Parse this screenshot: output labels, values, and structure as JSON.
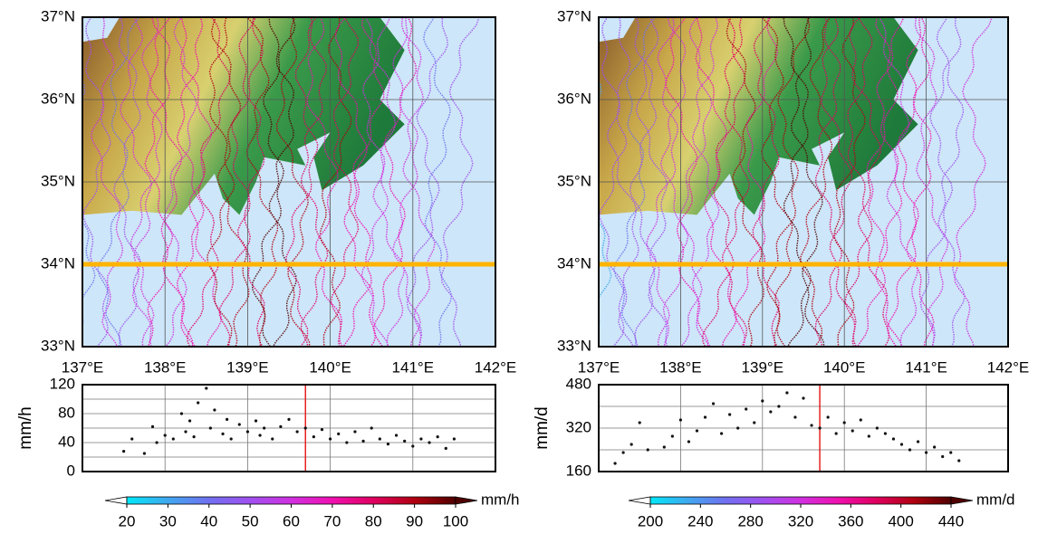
{
  "chart_data": [
    {
      "type": "map",
      "xlim": [
        137,
        142
      ],
      "ylim": [
        33,
        37
      ],
      "xticks": [
        {
          "value": 137,
          "label": "137°E"
        },
        {
          "value": 138,
          "label": "138°E"
        },
        {
          "value": 139,
          "label": "139°E"
        },
        {
          "value": 140,
          "label": "140°E"
        },
        {
          "value": 141,
          "label": "141°E"
        },
        {
          "value": 142,
          "label": "142°E"
        }
      ],
      "yticks": [
        {
          "value": 33,
          "label": "33°N"
        },
        {
          "value": 34,
          "label": "34°N"
        },
        {
          "value": 35,
          "label": "35°N"
        },
        {
          "value": 36,
          "label": "36°N"
        },
        {
          "value": 37,
          "label": "37°N"
        }
      ],
      "highlight_lat": 34,
      "highlight_color": "#ffb400"
    },
    {
      "type": "scatter",
      "ylabel": "mm/h",
      "xlim": [
        137,
        142
      ],
      "ylim": [
        0,
        120
      ],
      "xticks": [
        137,
        138,
        139,
        140,
        141,
        142
      ],
      "yticks": [
        0,
        40,
        80,
        120
      ],
      "ygrid": [
        0,
        20,
        40,
        60,
        80,
        100,
        120
      ],
      "reference_x": 139.7,
      "reference_color": "#e82020",
      "color": "#111111",
      "x": [
        137.5,
        137.6,
        137.75,
        137.85,
        137.9,
        138.0,
        138.1,
        138.2,
        138.25,
        138.3,
        138.35,
        138.4,
        138.5,
        138.55,
        138.6,
        138.7,
        138.75,
        138.8,
        138.9,
        139.0,
        139.1,
        139.15,
        139.2,
        139.3,
        139.4,
        139.5,
        139.6,
        139.7,
        139.8,
        139.9,
        140.0,
        140.1,
        140.2,
        140.3,
        140.4,
        140.5,
        140.6,
        140.7,
        140.8,
        140.9,
        141.0,
        141.1,
        141.2,
        141.3,
        141.4,
        141.5
      ],
      "values": [
        28,
        45,
        25,
        62,
        40,
        50,
        45,
        80,
        55,
        70,
        48,
        95,
        115,
        60,
        85,
        52,
        72,
        45,
        65,
        55,
        70,
        50,
        60,
        45,
        62,
        72,
        55,
        60,
        48,
        58,
        45,
        52,
        40,
        55,
        42,
        60,
        45,
        38,
        50,
        42,
        35,
        45,
        40,
        48,
        32,
        45
      ]
    },
    {
      "type": "colorbar",
      "label": "mm/h",
      "clim": [
        20,
        100
      ],
      "ticks": [
        20,
        30,
        40,
        50,
        60,
        70,
        80,
        90,
        100
      ],
      "colors": [
        "#00e8f8",
        "#40a8f0",
        "#7070f0",
        "#a050f0",
        "#d030e0",
        "#f010b0",
        "#e00060",
        "#b00010",
        "#500000"
      ]
    },
    {
      "type": "map",
      "xlim": [
        137,
        142
      ],
      "ylim": [
        33,
        37
      ],
      "xticks": [
        {
          "value": 137,
          "label": "137°E"
        },
        {
          "value": 138,
          "label": "138°E"
        },
        {
          "value": 139,
          "label": "139°E"
        },
        {
          "value": 140,
          "label": "140°E"
        },
        {
          "value": 141,
          "label": "141°E"
        },
        {
          "value": 142,
          "label": "142°E"
        }
      ],
      "yticks": [
        {
          "value": 33,
          "label": "33°N"
        },
        {
          "value": 34,
          "label": "34°N"
        },
        {
          "value": 35,
          "label": "35°N"
        },
        {
          "value": 36,
          "label": "36°N"
        },
        {
          "value": 37,
          "label": "37°N"
        }
      ],
      "highlight_lat": 34,
      "highlight_color": "#ffb400"
    },
    {
      "type": "scatter",
      "ylabel": "mm/d",
      "xlim": [
        137,
        142
      ],
      "ylim": [
        160,
        480
      ],
      "xticks": [
        137,
        138,
        139,
        140,
        141,
        142
      ],
      "yticks": [
        160,
        320,
        480
      ],
      "ygrid": [
        160,
        240,
        320,
        400,
        480
      ],
      "reference_x": 139.7,
      "reference_color": "#e82020",
      "color": "#111111",
      "x": [
        137.2,
        137.3,
        137.4,
        137.5,
        137.6,
        137.8,
        137.9,
        138.0,
        138.1,
        138.2,
        138.3,
        138.4,
        138.5,
        138.6,
        138.7,
        138.8,
        138.9,
        139.0,
        139.1,
        139.2,
        139.3,
        139.4,
        139.5,
        139.6,
        139.7,
        139.8,
        139.9,
        140.0,
        140.1,
        140.2,
        140.3,
        140.4,
        140.5,
        140.6,
        140.7,
        140.8,
        140.9,
        141.0,
        141.1,
        141.2,
        141.3,
        141.4
      ],
      "values": [
        190,
        230,
        260,
        340,
        240,
        250,
        290,
        350,
        270,
        310,
        360,
        410,
        300,
        370,
        320,
        390,
        340,
        420,
        380,
        400,
        450,
        360,
        430,
        330,
        320,
        360,
        300,
        340,
        310,
        350,
        290,
        320,
        300,
        280,
        260,
        240,
        270,
        230,
        250,
        215,
        230,
        200
      ]
    },
    {
      "type": "colorbar",
      "label": "mm/d",
      "clim": [
        200,
        440
      ],
      "ticks": [
        200,
        240,
        280,
        320,
        360,
        400,
        440
      ],
      "colors": [
        "#00e8f8",
        "#40a8f0",
        "#7070f0",
        "#a050f0",
        "#d030e0",
        "#f010b0",
        "#e00060",
        "#b00010",
        "#500000"
      ]
    }
  ]
}
